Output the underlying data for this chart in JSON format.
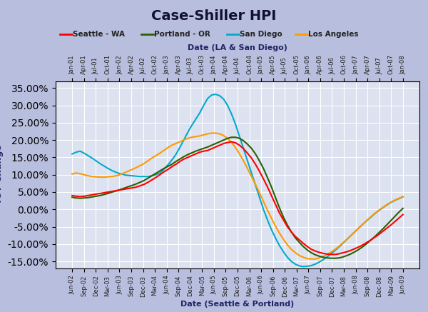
{
  "title": "Case-Shiller HPI",
  "xlabel_top": "Date (LA & San Diego)",
  "xlabel_bottom": "Date (Seattle & Portland)",
  "ylim": [
    -0.17,
    0.37
  ],
  "yticks": [
    -0.15,
    -0.1,
    -0.05,
    0.0,
    0.05,
    0.1,
    0.15,
    0.2,
    0.25,
    0.3,
    0.35
  ],
  "background_color": "#c8cce8",
  "plot_bg_color": "#d8dff0",
  "legend": {
    "Seattle - WA": "#ff0000",
    "Portland - OR": "#2a6000",
    "San Diego": "#00aacc",
    "Los Angeles": "#ff9900"
  },
  "seattle": {
    "color": "#ff0000",
    "data": [
      0.04,
      0.038,
      0.037,
      0.038,
      0.04,
      0.042,
      0.044,
      0.046,
      0.048,
      0.05,
      0.052,
      0.054,
      0.056,
      0.058,
      0.06,
      0.062,
      0.064,
      0.068,
      0.072,
      0.078,
      0.085,
      0.092,
      0.1,
      0.108,
      0.115,
      0.123,
      0.13,
      0.138,
      0.145,
      0.15,
      0.155,
      0.16,
      0.165,
      0.168,
      0.17,
      0.175,
      0.18,
      0.185,
      0.19,
      0.193,
      0.195,
      0.192,
      0.185,
      0.175,
      0.162,
      0.148,
      0.13,
      0.11,
      0.088,
      0.065,
      0.04,
      0.015,
      -0.01,
      -0.03,
      -0.05,
      -0.065,
      -0.078,
      -0.088,
      -0.098,
      -0.107,
      -0.115,
      -0.12,
      -0.124,
      -0.127,
      -0.129,
      -0.13,
      -0.13,
      -0.128,
      -0.125,
      -0.122,
      -0.118,
      -0.113,
      -0.108,
      -0.102,
      -0.095,
      -0.088,
      -0.08,
      -0.072,
      -0.063,
      -0.054,
      -0.045,
      -0.035,
      -0.025,
      -0.015
    ]
  },
  "portland": {
    "color": "#2a6000",
    "data": [
      0.035,
      0.033,
      0.032,
      0.033,
      0.034,
      0.036,
      0.038,
      0.04,
      0.043,
      0.046,
      0.05,
      0.053,
      0.057,
      0.061,
      0.065,
      0.069,
      0.073,
      0.078,
      0.083,
      0.09,
      0.097,
      0.104,
      0.111,
      0.118,
      0.124,
      0.13,
      0.138,
      0.145,
      0.152,
      0.158,
      0.163,
      0.168,
      0.172,
      0.176,
      0.18,
      0.185,
      0.19,
      0.195,
      0.2,
      0.205,
      0.208,
      0.208,
      0.205,
      0.198,
      0.188,
      0.176,
      0.16,
      0.14,
      0.118,
      0.092,
      0.065,
      0.035,
      0.005,
      -0.022,
      -0.045,
      -0.065,
      -0.082,
      -0.095,
      -0.107,
      -0.117,
      -0.125,
      -0.131,
      -0.135,
      -0.138,
      -0.14,
      -0.141,
      -0.141,
      -0.14,
      -0.137,
      -0.133,
      -0.128,
      -0.122,
      -0.115,
      -0.107,
      -0.098,
      -0.088,
      -0.078,
      -0.067,
      -0.056,
      -0.044,
      -0.032,
      -0.02,
      -0.008,
      0.003
    ]
  },
  "sandiego": {
    "color": "#00aacc",
    "data": [
      0.16,
      0.165,
      0.168,
      0.162,
      0.155,
      0.148,
      0.14,
      0.132,
      0.125,
      0.118,
      0.112,
      0.107,
      0.103,
      0.1,
      0.098,
      0.097,
      0.096,
      0.095,
      0.095,
      0.095,
      0.097,
      0.1,
      0.105,
      0.115,
      0.128,
      0.142,
      0.158,
      0.178,
      0.2,
      0.222,
      0.242,
      0.26,
      0.278,
      0.3,
      0.32,
      0.33,
      0.332,
      0.328,
      0.318,
      0.3,
      0.275,
      0.245,
      0.21,
      0.175,
      0.14,
      0.105,
      0.07,
      0.035,
      0.0,
      -0.03,
      -0.058,
      -0.082,
      -0.104,
      -0.122,
      -0.138,
      -0.15,
      -0.158,
      -0.163,
      -0.165,
      -0.164,
      -0.162,
      -0.158,
      -0.152,
      -0.145,
      -0.137,
      -0.128,
      -0.118,
      -0.108,
      -0.097,
      -0.086,
      -0.075,
      -0.064,
      -0.053,
      -0.042,
      -0.032,
      -0.022,
      -0.012,
      -0.003,
      0.005,
      0.013,
      0.02,
      0.026,
      0.031,
      0.036
    ]
  },
  "losangeles": {
    "color": "#ff9900",
    "data": [
      0.102,
      0.105,
      0.103,
      0.1,
      0.097,
      0.095,
      0.094,
      0.093,
      0.093,
      0.094,
      0.095,
      0.097,
      0.1,
      0.105,
      0.11,
      0.115,
      0.12,
      0.126,
      0.132,
      0.14,
      0.148,
      0.155,
      0.162,
      0.17,
      0.178,
      0.185,
      0.19,
      0.195,
      0.2,
      0.205,
      0.208,
      0.21,
      0.212,
      0.215,
      0.218,
      0.22,
      0.22,
      0.218,
      0.213,
      0.205,
      0.193,
      0.178,
      0.16,
      0.14,
      0.118,
      0.095,
      0.072,
      0.048,
      0.023,
      -0.002,
      -0.025,
      -0.048,
      -0.068,
      -0.086,
      -0.102,
      -0.115,
      -0.125,
      -0.133,
      -0.138,
      -0.142,
      -0.143,
      -0.143,
      -0.14,
      -0.136,
      -0.13,
      -0.123,
      -0.115,
      -0.106,
      -0.096,
      -0.086,
      -0.075,
      -0.064,
      -0.053,
      -0.042,
      -0.031,
      -0.021,
      -0.011,
      -0.002,
      0.006,
      0.014,
      0.021,
      0.027,
      0.032,
      0.037
    ]
  },
  "top_xtick_labels": [
    "Jan-01",
    "Apr-01",
    "Jul-01",
    "Oct-01",
    "Jan-02",
    "Apr-02",
    "Jul-02",
    "Oct-02",
    "Jan-03",
    "Apr-03",
    "Jul-03",
    "Oct-03",
    "Jan-04",
    "Apr-04",
    "Jul-04",
    "Oct-04",
    "Jan-05",
    "Apr-05",
    "Jul-05",
    "Oct-05",
    "Jan-06",
    "Apr-06",
    "Jul-06",
    "Oct-06",
    "Jan-07",
    "Apr-07",
    "Jul-07",
    "Oct-07",
    "Jan-08"
  ],
  "bottom_xtick_labels": [
    "Jun-02",
    "Sep-02",
    "Dec-02",
    "Mar-03",
    "Jun-03",
    "Sep-03",
    "Dec-03",
    "Mar-04",
    "Jun-04",
    "Sep-04",
    "Dec-04",
    "Mar-05",
    "Jun-05",
    "Sep-05",
    "Dec-05",
    "Mar-06",
    "Jun-06",
    "Sep-06",
    "Dec-06",
    "Mar-07",
    "Jun-07",
    "Sep-07",
    "Dec-07",
    "Mar-08",
    "Jun-08",
    "Sep-08",
    "Dec-08",
    "Mar-09",
    "Jun-09"
  ]
}
